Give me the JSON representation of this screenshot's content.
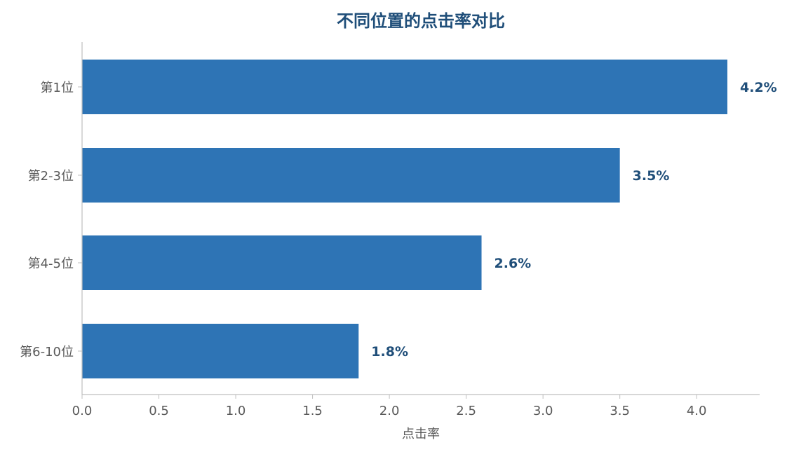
{
  "chart_data": {
    "type": "bar",
    "orientation": "horizontal",
    "title": "不同位置的点击率对比",
    "xlabel": "点击率",
    "ylabel": "",
    "categories": [
      "第1位",
      "第2-3位",
      "第4-5位",
      "第6-10位"
    ],
    "values": [
      4.2,
      3.5,
      2.6,
      1.8
    ],
    "data_labels": [
      "4.2%",
      "3.5%",
      "2.6%",
      "1.8%"
    ],
    "xlim": [
      0,
      4.41
    ],
    "x_ticks": [
      0.0,
      0.5,
      1.0,
      1.5,
      2.0,
      2.5,
      3.0,
      3.5,
      4.0
    ],
    "x_tick_labels": [
      "0.0",
      "0.5",
      "1.0",
      "1.5",
      "2.0",
      "2.5",
      "3.0",
      "3.5",
      "4.0"
    ],
    "grid": false,
    "legend": "none",
    "colors": {
      "bar": "#2E74B5",
      "title": "#1F4E79",
      "data_label": "#1F4E79",
      "axis_line": "#BFBFBF",
      "axis_text": "#595959"
    }
  }
}
